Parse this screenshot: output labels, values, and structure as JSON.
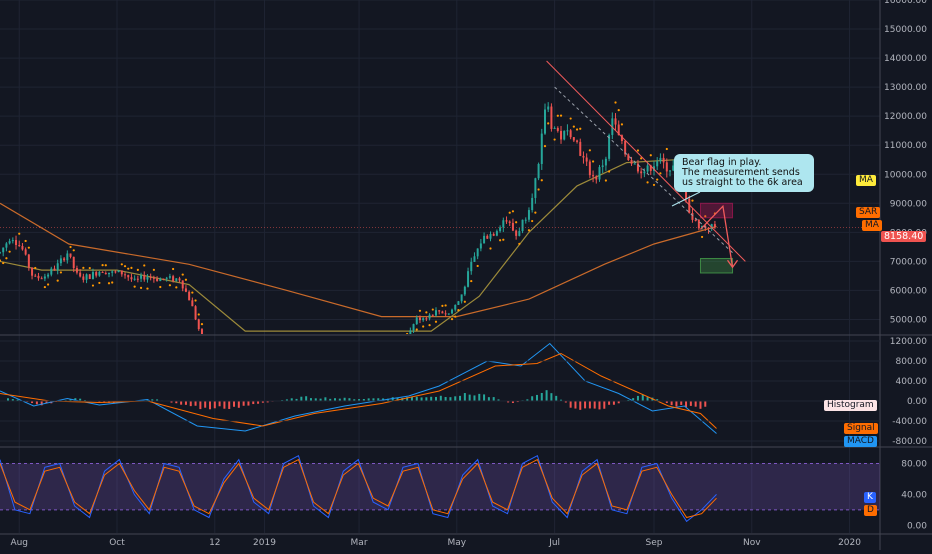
{
  "theme": {
    "background": "#131722",
    "grid": "#1f2433",
    "axis_text": "#b2b5be",
    "candle_up": "#26a69a",
    "candle_down": "#ef5350",
    "sar_color": "#ff9800",
    "ma_short_color": "#9c8a3a",
    "ma_long_color": "#c96a2a",
    "macd_color": "#2196f3",
    "signal_color": "#ff6d00",
    "stoch_k_color": "#2962ff",
    "stoch_d_color": "#ff6d00",
    "stoch_band_color": "#7e57c2",
    "drawing_color": "#f15b5b",
    "target_zone_color": "#4caf50",
    "flag_zone_color": "#c2185b"
  },
  "annotation": {
    "lines": [
      "Bear flag in play.",
      "The measurement sends",
      "us straight to the 6k area"
    ]
  },
  "price_tags": {
    "last_price": "8158.40",
    "ma_top": "MA",
    "sar": "SAR",
    "ma_mid": "MA"
  },
  "indicator_tags": {
    "histogram": "Histogram",
    "signal": "Signal",
    "macd": "MACD",
    "k": "K",
    "d": "D"
  },
  "chart_data": [
    {
      "type": "candlestick",
      "title": "",
      "x_ticks": [
        "Aug",
        "Oct",
        "12",
        "2019",
        "Mar",
        "May",
        "Jul",
        "Sep",
        "Nov",
        "2020"
      ],
      "y_ticks": [
        "16000.00",
        "15000.00",
        "14000.00",
        "13000.00",
        "12000.00",
        "11000.00",
        "10000.00",
        "9000.00",
        "8000.00",
        "7000.00",
        "6000.00",
        "5000.00"
      ],
      "ylim": [
        4500,
        16000
      ],
      "last_price": 8158.4,
      "grid": true,
      "price_path": [
        [
          "2018-07-20",
          7300
        ],
        [
          "2018-07-27",
          7900
        ],
        [
          "2018-08-03",
          7400
        ],
        [
          "2018-08-10",
          6400
        ],
        [
          "2018-08-17",
          6500
        ],
        [
          "2018-08-24",
          6800
        ],
        [
          "2018-08-31",
          7300
        ],
        [
          "2018-09-07",
          6400
        ],
        [
          "2018-09-14",
          6500
        ],
        [
          "2018-09-21",
          6700
        ],
        [
          "2018-09-28",
          6600
        ],
        [
          "2018-10-05",
          6600
        ],
        [
          "2018-10-12",
          6300
        ],
        [
          "2018-10-19",
          6500
        ],
        [
          "2018-10-26",
          6400
        ],
        [
          "2018-11-02",
          6400
        ],
        [
          "2018-11-09",
          6400
        ],
        [
          "2018-11-16",
          5600
        ],
        [
          "2018-11-23",
          4300
        ],
        [
          "2019-03-29",
          4100
        ],
        [
          "2019-04-05",
          5000
        ],
        [
          "2019-04-12",
          5100
        ],
        [
          "2019-04-19",
          5300
        ],
        [
          "2019-04-26",
          5200
        ],
        [
          "2019-05-03",
          5700
        ],
        [
          "2019-05-10",
          6900
        ],
        [
          "2019-05-17",
          7800
        ],
        [
          "2019-05-24",
          8000
        ],
        [
          "2019-05-31",
          8500
        ],
        [
          "2019-06-07",
          7900
        ],
        [
          "2019-06-14",
          8700
        ],
        [
          "2019-06-21",
          10200
        ],
        [
          "2019-06-26",
          12800
        ],
        [
          "2019-06-28",
          11800
        ],
        [
          "2019-07-05",
          11300
        ],
        [
          "2019-07-12",
          11500
        ],
        [
          "2019-07-19",
          10500
        ],
        [
          "2019-07-26",
          9800
        ],
        [
          "2019-08-02",
          10600
        ],
        [
          "2019-08-06",
          11900
        ],
        [
          "2019-08-13",
          10800
        ],
        [
          "2019-08-20",
          10300
        ],
        [
          "2019-08-27",
          10100
        ],
        [
          "2019-09-03",
          10500
        ],
        [
          "2019-09-10",
          10200
        ],
        [
          "2019-09-17",
          10300
        ],
        [
          "2019-09-24",
          8500
        ],
        [
          "2019-09-30",
          8200
        ],
        [
          "2019-10-06",
          8200
        ],
        [
          "2019-10-10",
          8158
        ]
      ],
      "moving_averages": [
        {
          "name": "MA",
          "points": [
            [
              "2018-07-20",
              9000
            ],
            [
              "2018-09-01",
              7600
            ],
            [
              "2018-11-15",
              6900
            ],
            [
              "2019-01-15",
              6000
            ],
            [
              "2019-03-15",
              5100
            ],
            [
              "2019-05-01",
              5100
            ],
            [
              "2019-06-15",
              5700
            ],
            [
              "2019-08-01",
              6900
            ],
            [
              "2019-09-01",
              7600
            ],
            [
              "2019-10-10",
              8200
            ]
          ]
        },
        {
          "name": "MA",
          "points": [
            [
              "2018-07-20",
              7000
            ],
            [
              "2018-08-15",
              6700
            ],
            [
              "2018-10-01",
              6700
            ],
            [
              "2018-11-15",
              6200
            ],
            [
              "2018-12-20",
              4600
            ],
            [
              "2019-04-15",
              4600
            ],
            [
              "2019-05-15",
              5800
            ],
            [
              "2019-06-15",
              8000
            ],
            [
              "2019-07-15",
              9600
            ],
            [
              "2019-08-15",
              10400
            ],
            [
              "2019-09-15",
              10500
            ],
            [
              "2019-10-10",
              9800
            ]
          ]
        }
      ],
      "drawings": {
        "descending_trendline": [
          [
            "2019-06-26",
            13900
          ],
          [
            "2019-10-28",
            7000
          ]
        ],
        "flag_zone": {
          "from": "2019-09-30",
          "to": "2019-10-20",
          "low": 8500,
          "high": 9000
        },
        "target_zone": {
          "from": "2019-09-30",
          "to": "2019-10-20",
          "low": 6600,
          "high": 7100
        },
        "target_arrow": [
          [
            "2019-10-14",
            8900
          ],
          [
            "2019-10-20",
            6800
          ]
        ]
      }
    },
    {
      "type": "macd",
      "y_ticks": [
        "1200.00",
        "800.00",
        "400.00",
        "0.00",
        "-400.00",
        "-800.00"
      ],
      "ylim": [
        -900,
        1300
      ],
      "series": [
        {
          "name": "MACD",
          "points": [
            [
              "2018-07-20",
              200
            ],
            [
              "2018-08-10",
              -100
            ],
            [
              "2018-08-31",
              50
            ],
            [
              "2018-09-20",
              -80
            ],
            [
              "2018-10-20",
              30
            ],
            [
              "2018-11-20",
              -500
            ],
            [
              "2018-12-20",
              -600
            ],
            [
              "2019-01-20",
              -300
            ],
            [
              "2019-02-20",
              -100
            ],
            [
              "2019-04-01",
              100
            ],
            [
              "2019-04-20",
              300
            ],
            [
              "2019-05-20",
              800
            ],
            [
              "2019-06-10",
              700
            ],
            [
              "2019-06-28",
              1150
            ],
            [
              "2019-07-20",
              400
            ],
            [
              "2019-08-10",
              150
            ],
            [
              "2019-08-31",
              -200
            ],
            [
              "2019-09-20",
              -100
            ],
            [
              "2019-10-10",
              -650
            ]
          ]
        },
        {
          "name": "Signal",
          "points": [
            [
              "2018-07-20",
              150
            ],
            [
              "2018-08-20",
              0
            ],
            [
              "2018-09-20",
              -30
            ],
            [
              "2018-10-20",
              0
            ],
            [
              "2018-11-30",
              -350
            ],
            [
              "2018-12-31",
              -500
            ],
            [
              "2019-02-01",
              -250
            ],
            [
              "2019-03-15",
              -50
            ],
            [
              "2019-04-20",
              200
            ],
            [
              "2019-05-25",
              700
            ],
            [
              "2019-06-20",
              750
            ],
            [
              "2019-07-05",
              950
            ],
            [
              "2019-07-30",
              500
            ],
            [
              "2019-08-20",
              200
            ],
            [
              "2019-09-10",
              -100
            ],
            [
              "2019-09-30",
              -250
            ],
            [
              "2019-10-10",
              -550
            ]
          ]
        },
        {
          "name": "Histogram",
          "points": [
            [
              "2018-07-25",
              80
            ],
            [
              "2018-08-15",
              -90
            ],
            [
              "2018-09-05",
              60
            ],
            [
              "2018-09-25",
              -50
            ],
            [
              "2018-10-25",
              40
            ],
            [
              "2018-11-25",
              -180
            ],
            [
              "2018-12-15",
              -140
            ],
            [
              "2019-01-25",
              90
            ],
            [
              "2019-03-01",
              50
            ],
            [
              "2019-04-25",
              120
            ],
            [
              "2019-05-15",
              170
            ],
            [
              "2019-06-05",
              -60
            ],
            [
              "2019-06-28",
              230
            ],
            [
              "2019-07-15",
              -240
            ],
            [
              "2019-08-05",
              -120
            ],
            [
              "2019-08-25",
              150
            ],
            [
              "2019-09-15",
              -120
            ],
            [
              "2019-10-05",
              -180
            ]
          ]
        }
      ]
    },
    {
      "type": "stochastic",
      "y_ticks": [
        "80.00",
        "40.00",
        "0.00"
      ],
      "ylim": [
        -10,
        100
      ],
      "band": [
        20,
        80
      ],
      "series": [
        {
          "name": "K",
          "values": [
            85,
            20,
            15,
            75,
            80,
            25,
            10,
            70,
            85,
            40,
            15,
            80,
            75,
            20,
            10,
            60,
            85,
            30,
            15,
            80,
            90,
            25,
            10,
            70,
            85,
            30,
            20,
            75,
            80,
            15,
            10,
            65,
            85,
            25,
            15,
            80,
            90,
            30,
            10,
            70,
            85,
            20,
            15,
            75,
            80,
            35,
            5,
            20,
            40
          ]
        },
        {
          "name": "D",
          "values": [
            80,
            30,
            20,
            70,
            75,
            30,
            15,
            65,
            80,
            45,
            20,
            75,
            70,
            25,
            15,
            55,
            80,
            35,
            20,
            75,
            85,
            30,
            15,
            65,
            80,
            35,
            25,
            70,
            75,
            20,
            15,
            60,
            80,
            30,
            20,
            75,
            85,
            35,
            15,
            65,
            80,
            25,
            20,
            70,
            75,
            40,
            10,
            15,
            35
          ]
        }
      ]
    }
  ]
}
